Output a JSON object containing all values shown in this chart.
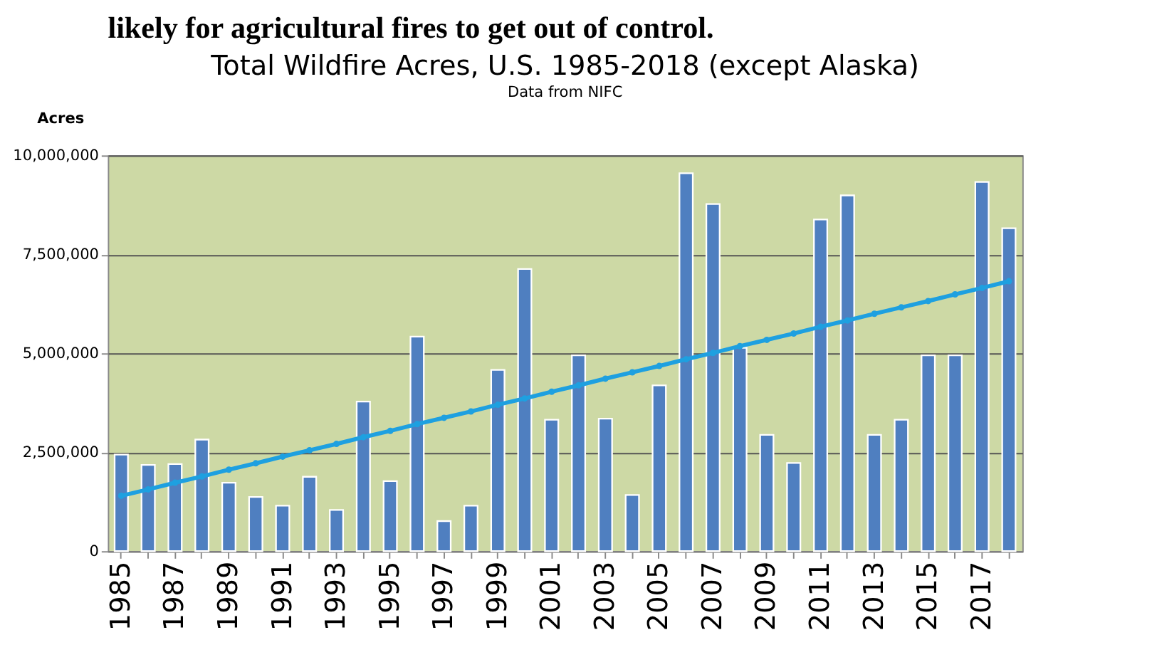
{
  "chart_data": {
    "type": "bar",
    "title": "Total Wildfire Acres, U.S. 1985-2018 (except Alaska)",
    "subtitle": "Data from NIFC",
    "ylabel": "Acres",
    "annotations": [
      "likely for agricultural fires to get out of control."
    ],
    "categories": [
      "1985",
      null,
      "1987",
      null,
      "1989",
      null,
      "1991",
      null,
      "1993",
      null,
      "1995",
      null,
      "1997",
      null,
      "1999",
      null,
      "2001",
      null,
      "2003",
      null,
      "2005",
      null,
      "2007",
      null,
      "2009",
      null,
      "2011",
      null,
      "2013",
      null,
      "2015",
      null,
      "2017",
      null
    ],
    "series": [
      {
        "color": "#4f7fc0",
        "values": [
          2440000,
          2180000,
          2200000,
          2820000,
          1730000,
          1370000,
          1150000,
          1880000,
          1040000,
          3780000,
          1770000,
          5420000,
          760000,
          1150000,
          4580000,
          7130000,
          3320000,
          4950000,
          3350000,
          1420000,
          4190000,
          9550000,
          8770000,
          5140000,
          2940000,
          2230000,
          8380000,
          8990000,
          2940000,
          3320000,
          4950000,
          4950000,
          9330000,
          8160000
        ]
      },
      {
        "type": "line",
        "color": "#1ea0e0",
        "marker": "circle",
        "values": [
          1400000,
          1560000,
          1730000,
          1890000,
          2060000,
          2220000,
          2390000,
          2550000,
          2710000,
          2880000,
          3040000,
          3210000,
          3370000,
          3530000,
          3700000,
          3860000,
          4030000,
          4190000,
          4360000,
          4520000,
          4680000,
          4850000,
          5010000,
          5180000,
          5340000,
          5500000,
          5670000,
          5830000,
          6000000,
          6160000,
          6320000,
          6490000,
          6650000,
          6820000
        ]
      }
    ],
    "ylim": [
      0,
      10000000
    ],
    "yticks": [
      0,
      {
        "value": 2500000,
        "label": "2,500,000"
      },
      {
        "value": 5000000,
        "label": "5,000,000"
      },
      {
        "value": 7500000,
        "label": "7,500,000"
      },
      {
        "value": 10000000,
        "label": "10,000,000"
      }
    ],
    "grid": "y"
  }
}
